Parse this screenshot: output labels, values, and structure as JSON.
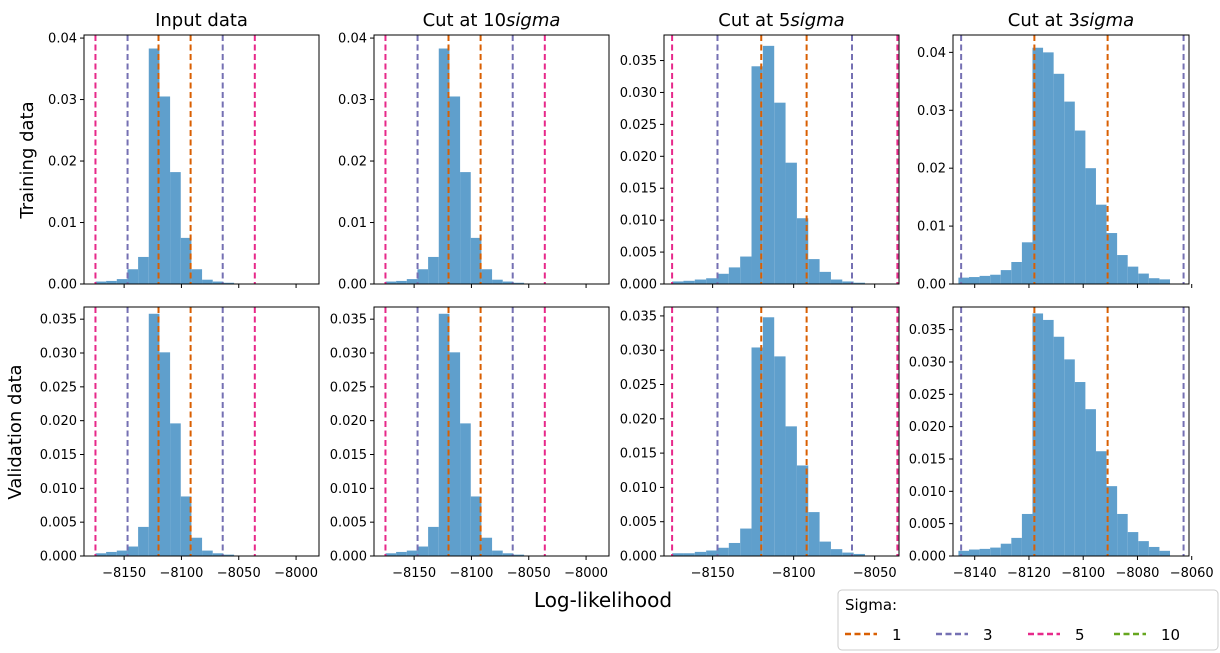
{
  "figure": {
    "xlabel": "Log-likelihood",
    "row_labels": [
      "Training data",
      "Validation data"
    ],
    "legend": {
      "title": "Sigma:",
      "entries": [
        {
          "label": "1",
          "color": "#d95f02"
        },
        {
          "label": "3",
          "color": "#7570b3"
        },
        {
          "label": "5",
          "color": "#e7298a"
        },
        {
          "label": "10",
          "color": "#66a61e"
        }
      ]
    },
    "bar_color": "#5f9fcc"
  },
  "chart_data": [
    {
      "type": "bar",
      "title": "Input data",
      "row": 0,
      "col": 0,
      "xlim": [
        -8185,
        -7980
      ],
      "ylim": [
        0,
        0.0405
      ],
      "xticks": [
        -8150,
        -8100,
        -8050,
        -8000
      ],
      "xtick_labels": [],
      "yticks": [
        0,
        0.01,
        0.02,
        0.03,
        0.04
      ],
      "ytick_labels": [
        "0.00",
        "0.01",
        "0.02",
        "0.03",
        "0.04"
      ],
      "bin_start": -8175,
      "bin_width": 9.3,
      "values": [
        0.0004,
        0.0005,
        0.0008,
        0.0024,
        0.0044,
        0.0383,
        0.0305,
        0.0182,
        0.0075,
        0.0024,
        0.0007,
        0.0004,
        0.0002
      ],
      "sigma_lines": [
        {
          "sigma": "1",
          "x": [
            -8120,
            -8092
          ]
        },
        {
          "sigma": "3",
          "x": [
            -8147,
            -8064
          ]
        },
        {
          "sigma": "5",
          "x": [
            -8175,
            -8036
          ]
        }
      ]
    },
    {
      "type": "bar",
      "title": "Cut at 10$sigma$",
      "row": 0,
      "col": 1,
      "xlim": [
        -8185,
        -7980
      ],
      "ylim": [
        0,
        0.0405
      ],
      "xticks": [
        -8150,
        -8100,
        -8050,
        -8000
      ],
      "xtick_labels": [],
      "yticks": [
        0,
        0.01,
        0.02,
        0.03,
        0.04
      ],
      "ytick_labels": [
        "0.00",
        "0.01",
        "0.02",
        "0.03",
        "0.04"
      ],
      "bin_start": -8175,
      "bin_width": 9.3,
      "values": [
        0.0004,
        0.0005,
        0.0008,
        0.0024,
        0.0044,
        0.0383,
        0.0305,
        0.0182,
        0.0075,
        0.0024,
        0.0007,
        0.0004,
        0.0002
      ],
      "sigma_lines": [
        {
          "sigma": "1",
          "x": [
            -8120,
            -8092
          ]
        },
        {
          "sigma": "3",
          "x": [
            -8147,
            -8064
          ]
        },
        {
          "sigma": "5",
          "x": [
            -8175,
            -8036
          ]
        }
      ]
    },
    {
      "type": "bar",
      "title": "Cut at 5$sigma$",
      "row": 0,
      "col": 2,
      "xlim": [
        -8180,
        -8035
      ],
      "ylim": [
        0,
        0.039
      ],
      "xticks": [
        -8150,
        -8100,
        -8050
      ],
      "xtick_labels": [],
      "yticks": [
        0,
        0.005,
        0.01,
        0.015,
        0.02,
        0.025,
        0.03,
        0.035
      ],
      "ytick_labels": [
        "0.000",
        "0.005",
        "0.010",
        "0.015",
        "0.020",
        "0.025",
        "0.030",
        "0.035"
      ],
      "bin_start": -8175,
      "bin_width": 7.0,
      "values": [
        0.0004,
        0.0005,
        0.0007,
        0.0009,
        0.0016,
        0.0026,
        0.0043,
        0.0341,
        0.0373,
        0.0284,
        0.019,
        0.0103,
        0.0039,
        0.0019,
        0.0007,
        0.0004,
        0.0002
      ],
      "sigma_lines": [
        {
          "sigma": "1",
          "x": [
            -8120,
            -8092
          ]
        },
        {
          "sigma": "3",
          "x": [
            -8147,
            -8064
          ]
        },
        {
          "sigma": "5",
          "x": [
            -8175,
            -8036
          ]
        }
      ]
    },
    {
      "type": "bar",
      "title": "Cut at 3$sigma$",
      "row": 0,
      "col": 3,
      "xlim": [
        -8148,
        -8061
      ],
      "ylim": [
        0,
        0.043
      ],
      "xticks": [
        -8140,
        -8120,
        -8100,
        -8080,
        -8060
      ],
      "xtick_labels": [],
      "yticks": [
        0,
        0.01,
        0.02,
        0.03,
        0.04
      ],
      "ytick_labels": [
        "0.00",
        "0.01",
        "0.02",
        "0.03",
        "0.04"
      ],
      "bin_start": -8146,
      "bin_width": 3.9,
      "values": [
        0.0011,
        0.0012,
        0.0014,
        0.0016,
        0.0024,
        0.0038,
        0.0072,
        0.0408,
        0.04,
        0.0363,
        0.0315,
        0.0265,
        0.02,
        0.0137,
        0.0088,
        0.005,
        0.003,
        0.0018,
        0.001,
        0.0008
      ],
      "sigma_lines": [
        {
          "sigma": "1",
          "x": [
            -8118,
            -8091
          ]
        },
        {
          "sigma": "3",
          "x": [
            -8145,
            -8063
          ]
        }
      ]
    },
    {
      "type": "bar",
      "title": "",
      "row": 1,
      "col": 0,
      "xlim": [
        -8185,
        -7980
      ],
      "ylim": [
        0,
        0.0368
      ],
      "xticks": [
        -8150,
        -8100,
        -8050,
        -8000
      ],
      "xtick_labels": [
        "−8150",
        "−8100",
        "−8050",
        "−8000"
      ],
      "yticks": [
        0,
        0.005,
        0.01,
        0.015,
        0.02,
        0.025,
        0.03,
        0.035
      ],
      "ytick_labels": [
        "0.000",
        "0.005",
        "0.010",
        "0.015",
        "0.020",
        "0.025",
        "0.030",
        "0.035"
      ],
      "bin_start": -8175,
      "bin_width": 9.3,
      "values": [
        0.0004,
        0.0006,
        0.0008,
        0.0014,
        0.0043,
        0.0358,
        0.0301,
        0.0196,
        0.0088,
        0.0027,
        0.0008,
        0.0004,
        0.0002
      ],
      "sigma_lines": [
        {
          "sigma": "1",
          "x": [
            -8120,
            -8092
          ]
        },
        {
          "sigma": "3",
          "x": [
            -8147,
            -8064
          ]
        },
        {
          "sigma": "5",
          "x": [
            -8175,
            -8036
          ]
        }
      ]
    },
    {
      "type": "bar",
      "title": "",
      "row": 1,
      "col": 1,
      "xlim": [
        -8185,
        -7980
      ],
      "ylim": [
        0,
        0.0368
      ],
      "xticks": [
        -8150,
        -8100,
        -8050,
        -8000
      ],
      "xtick_labels": [
        "−8150",
        "−8100",
        "−8050",
        "−8000"
      ],
      "yticks": [
        0,
        0.005,
        0.01,
        0.015,
        0.02,
        0.025,
        0.03,
        0.035
      ],
      "ytick_labels": [
        "0.000",
        "0.005",
        "0.010",
        "0.015",
        "0.020",
        "0.025",
        "0.030",
        "0.035"
      ],
      "bin_start": -8175,
      "bin_width": 9.3,
      "values": [
        0.0004,
        0.0006,
        0.0008,
        0.0014,
        0.0043,
        0.0358,
        0.0301,
        0.0196,
        0.0088,
        0.0027,
        0.0008,
        0.0004,
        0.0002
      ],
      "sigma_lines": [
        {
          "sigma": "1",
          "x": [
            -8120,
            -8092
          ]
        },
        {
          "sigma": "3",
          "x": [
            -8147,
            -8064
          ]
        },
        {
          "sigma": "5",
          "x": [
            -8175,
            -8036
          ]
        }
      ]
    },
    {
      "type": "bar",
      "title": "",
      "row": 1,
      "col": 2,
      "xlim": [
        -8180,
        -8035
      ],
      "ylim": [
        0,
        0.0363
      ],
      "xticks": [
        -8150,
        -8100,
        -8050
      ],
      "xtick_labels": [
        "−8150",
        "−8100",
        "−8050"
      ],
      "yticks": [
        0,
        0.005,
        0.01,
        0.015,
        0.02,
        0.025,
        0.03,
        0.035
      ],
      "ytick_labels": [
        "0.000",
        "0.005",
        "0.010",
        "0.015",
        "0.020",
        "0.025",
        "0.030",
        "0.035"
      ],
      "bin_start": -8175,
      "bin_width": 7.0,
      "values": [
        0.0004,
        0.0004,
        0.0006,
        0.0008,
        0.0012,
        0.0019,
        0.004,
        0.0304,
        0.0348,
        0.0291,
        0.0189,
        0.0132,
        0.0064,
        0.0021,
        0.001,
        0.0005,
        0.0003
      ],
      "sigma_lines": [
        {
          "sigma": "1",
          "x": [
            -8120,
            -8092
          ]
        },
        {
          "sigma": "3",
          "x": [
            -8147,
            -8064
          ]
        },
        {
          "sigma": "5",
          "x": [
            -8175,
            -8036
          ]
        }
      ]
    },
    {
      "type": "bar",
      "title": "",
      "row": 1,
      "col": 3,
      "xlim": [
        -8148,
        -8061
      ],
      "ylim": [
        0,
        0.0385
      ],
      "xticks": [
        -8140,
        -8120,
        -8100,
        -8080,
        -8060
      ],
      "xtick_labels": [
        "−8140",
        "−8120",
        "−8100",
        "−8080",
        "−8060"
      ],
      "yticks": [
        0,
        0.005,
        0.01,
        0.015,
        0.02,
        0.025,
        0.03,
        0.035
      ],
      "ytick_labels": [
        "0.000",
        "0.005",
        "0.010",
        "0.015",
        "0.020",
        "0.025",
        "0.030",
        "0.035"
      ],
      "bin_start": -8146,
      "bin_width": 3.9,
      "values": [
        0.0008,
        0.001,
        0.0011,
        0.0013,
        0.0019,
        0.0028,
        0.0065,
        0.0375,
        0.0365,
        0.0339,
        0.0304,
        0.0269,
        0.0227,
        0.0162,
        0.0108,
        0.0065,
        0.0037,
        0.0023,
        0.0014,
        0.0008
      ],
      "sigma_lines": [
        {
          "sigma": "1",
          "x": [
            -8118,
            -8091
          ]
        },
        {
          "sigma": "3",
          "x": [
            -8145,
            -8063
          ]
        }
      ]
    }
  ]
}
